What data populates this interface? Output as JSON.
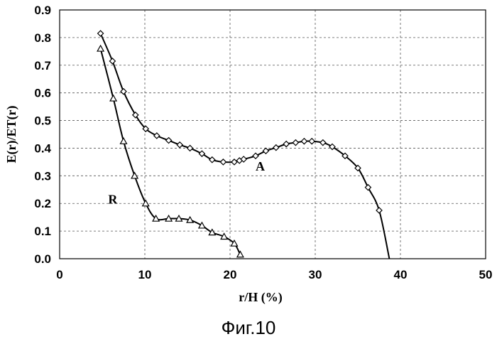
{
  "chart_data": {
    "type": "line",
    "title": "",
    "xlabel": "r/H  (%)",
    "ylabel": "E(r)/ET(r)",
    "xlim": [
      0,
      50
    ],
    "ylim": [
      0,
      0.9
    ],
    "x_ticks": [
      "0",
      "10",
      "20",
      "30",
      "40",
      "50"
    ],
    "y_ticks": [
      "0.0",
      "0.1",
      "0.2",
      "0.3",
      "0.4",
      "0.5",
      "0.6",
      "0.7",
      "0.8",
      "0.9"
    ],
    "grid": true,
    "legend": "none",
    "series": [
      {
        "name": "A",
        "marker": "diamond",
        "x": [
          4.8,
          6.2,
          7.5,
          8.9,
          10.1,
          11.4,
          12.8,
          14.1,
          15.3,
          16.7,
          17.9,
          19.2,
          20.5,
          21.1,
          21.6,
          23.0,
          24.2,
          25.4,
          26.6,
          27.7,
          28.7,
          29.6,
          30.9,
          32.0,
          33.5,
          35.0,
          36.2,
          37.5
        ],
        "y": [
          0.815,
          0.715,
          0.605,
          0.52,
          0.47,
          0.445,
          0.428,
          0.412,
          0.4,
          0.38,
          0.358,
          0.35,
          0.35,
          0.355,
          0.36,
          0.372,
          0.39,
          0.402,
          0.415,
          0.42,
          0.425,
          0.425,
          0.42,
          0.405,
          0.372,
          0.328,
          0.258,
          0.175
        ],
        "curve_end": [
          38.7,
          0.0
        ]
      },
      {
        "name": "R",
        "marker": "triangle",
        "x": [
          4.8,
          6.3,
          7.5,
          8.8,
          10.1,
          11.3,
          12.8,
          14.0,
          15.3,
          16.7,
          17.9,
          19.3,
          20.5,
          21.2
        ],
        "y": [
          0.76,
          0.58,
          0.425,
          0.3,
          0.2,
          0.145,
          0.145,
          0.145,
          0.14,
          0.12,
          0.095,
          0.08,
          0.055,
          0.015
        ]
      }
    ]
  },
  "caption": "Фиг.10"
}
